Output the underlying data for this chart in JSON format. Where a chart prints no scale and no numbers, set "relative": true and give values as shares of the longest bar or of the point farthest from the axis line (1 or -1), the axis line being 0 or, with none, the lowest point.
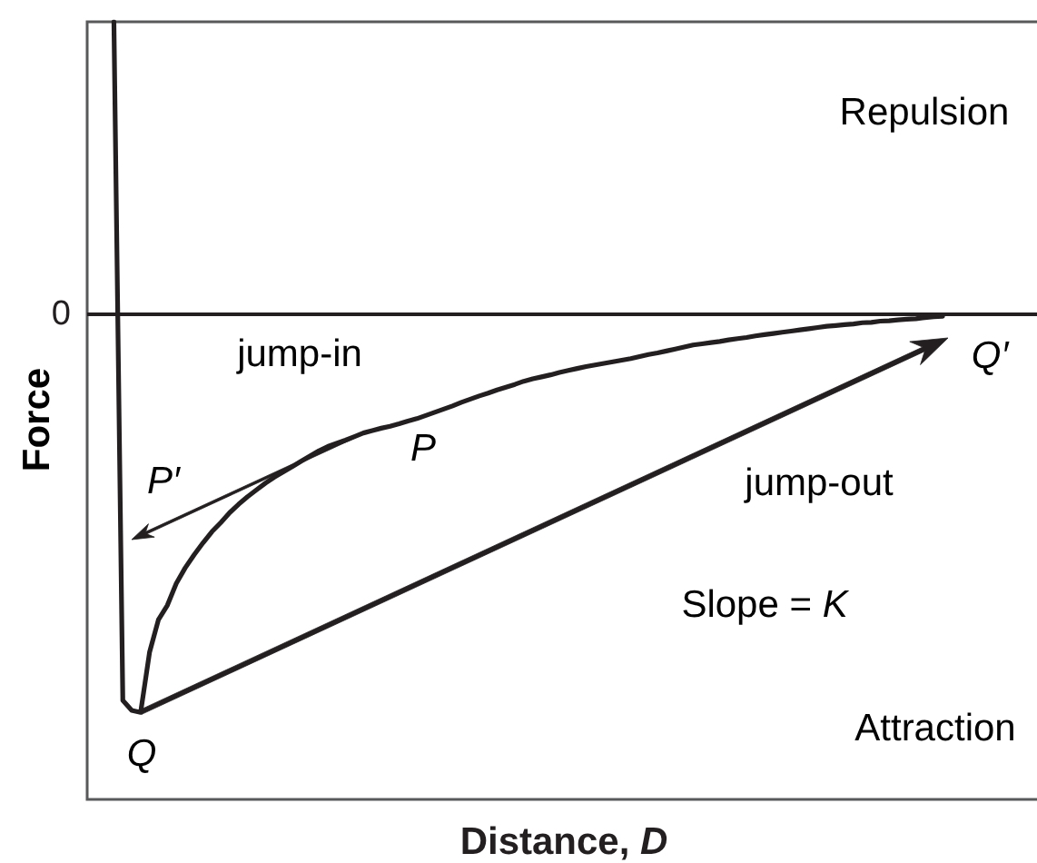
{
  "chart_data": {
    "type": "line",
    "relative": true,
    "xlabel": "Distance, D",
    "ylabel": "Force",
    "grid": false,
    "marker": "none",
    "line_style": "solid",
    "categories": [
      null,
      null,
      null,
      null,
      null,
      null,
      null,
      null,
      null,
      null,
      null,
      null,
      null,
      null,
      null,
      null,
      null,
      null,
      null,
      null,
      null,
      null,
      null,
      null,
      null,
      null,
      null,
      null,
      null,
      null,
      null,
      null,
      null,
      null,
      null,
      null,
      null,
      null,
      null,
      null,
      null,
      null,
      null,
      null,
      null,
      null,
      null,
      null,
      null,
      null,
      null,
      null,
      null,
      null,
      null,
      null,
      null,
      null,
      null,
      null,
      null,
      null,
      null,
      null,
      null,
      null,
      null,
      null,
      null,
      null,
      null,
      null,
      null,
      null,
      null,
      null,
      null,
      null,
      null,
      null,
      null,
      null,
      null,
      null,
      null,
      null,
      null,
      null,
      null,
      null,
      null,
      null,
      null,
      null,
      null,
      null,
      null,
      null,
      null,
      null,
      null,
      null,
      null,
      null,
      null,
      null,
      null,
      null
    ],
    "series": [
      {
        "color": "#231f20",
        "values": [
          null,
          null,
          null,
          0.735,
          -0.97,
          -0.995,
          -1,
          -0.849,
          -0.767,
          -0.731,
          -0.676,
          -0.637,
          -0.604,
          -0.574,
          -0.546,
          -0.523,
          -0.498,
          -0.477,
          -0.458,
          -0.441,
          -0.424,
          -0.409,
          -0.396,
          -0.383,
          -0.369,
          -0.356,
          -0.343,
          -0.332,
          -0.324,
          -0.316,
          -0.307,
          -0.298,
          -0.292,
          -0.286,
          -0.281,
          -0.275,
          -0.268,
          -0.262,
          -0.254,
          -0.246,
          -0.238,
          -0.23,
          -0.221,
          -0.213,
          -0.205,
          -0.198,
          -0.19,
          -0.183,
          -0.176,
          -0.168,
          -0.162,
          -0.157,
          -0.152,
          -0.146,
          -0.141,
          -0.136,
          -0.131,
          -0.127,
          -0.123,
          -0.119,
          -0.115,
          -0.111,
          -0.106,
          -0.101,
          -0.097,
          -0.092,
          -0.087,
          -0.082,
          -0.077,
          -0.074,
          -0.071,
          -0.068,
          -0.064,
          -0.061,
          -0.058,
          -0.054,
          -0.051,
          -0.048,
          -0.045,
          -0.042,
          -0.039,
          -0.036,
          -0.033,
          -0.03,
          -0.028,
          -0.026,
          -0.024,
          -0.021,
          -0.02,
          -0.017,
          -0.016,
          -0.014,
          -0.012,
          -0.011,
          -0.008,
          -0.006,
          -0.005,
          null,
          null,
          null,
          null,
          null,
          null,
          null,
          null,
          null,
          null,
          null
        ]
      }
    ],
    "ref_lines": [
      {
        "axis": "y",
        "value": 0,
        "label": "0",
        "color": "#231f20"
      }
    ],
    "annotations": [
      "Repulsion",
      "jump-in",
      "P′",
      "P",
      "jump-out",
      "Q′",
      "Slope = K",
      "Q",
      "Attraction"
    ]
  }
}
